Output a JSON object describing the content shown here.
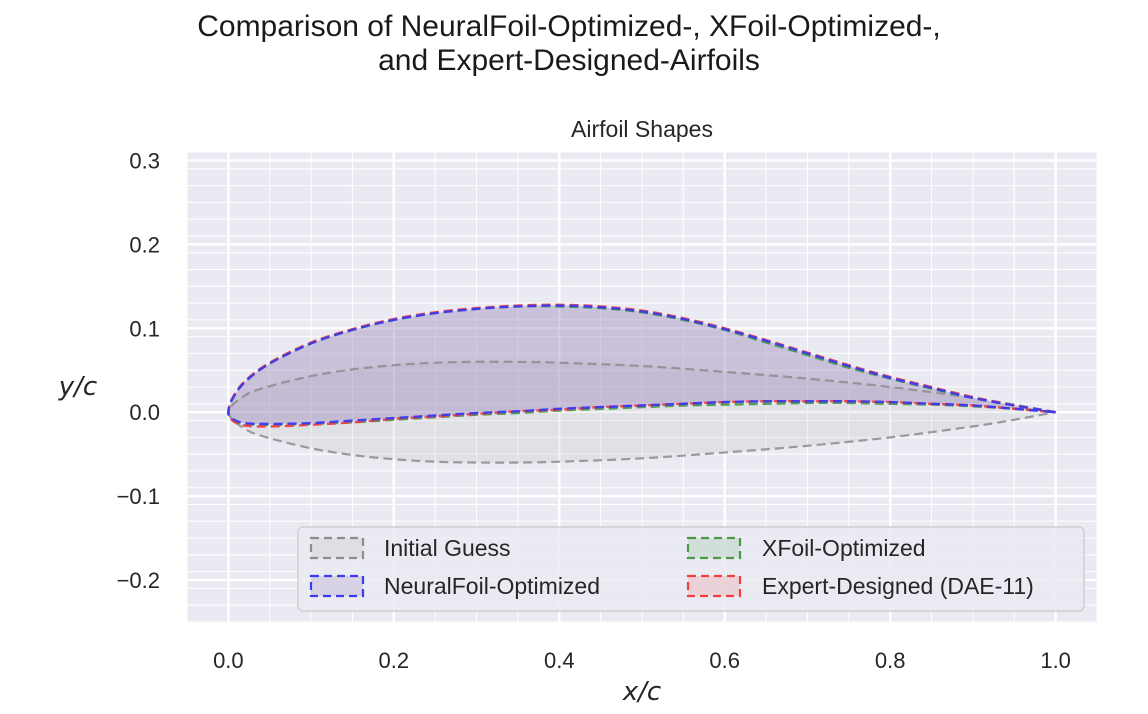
{
  "figure": {
    "suptitle_line1": "Comparison of NeuralFoil-Optimized-, XFoil-Optimized-,",
    "suptitle_line2": "and Expert-Designed-Airfoils"
  },
  "chart_data": {
    "type": "line",
    "title": "Airfoil Shapes",
    "xlabel": "x/c",
    "ylabel": "y/c",
    "xlim": [
      -0.05,
      1.05
    ],
    "ylim": [
      -0.25,
      0.31
    ],
    "xticks": [
      0.0,
      0.2,
      0.4,
      0.6,
      0.8,
      1.0
    ],
    "xtick_labels": [
      "0.0",
      "0.2",
      "0.4",
      "0.6",
      "0.8",
      "1.0"
    ],
    "yticks": [
      -0.2,
      -0.1,
      0.0,
      0.1,
      0.2,
      0.3
    ],
    "ytick_labels": [
      "−0.2",
      "−0.1",
      "0.0",
      "0.1",
      "0.2",
      "0.3"
    ],
    "grid": true,
    "legend_position": "lower-right",
    "series": [
      {
        "name": "Initial Guess",
        "color": "#8c8c8c",
        "fill_color": "#bdbdbd",
        "linestyle": "dashed",
        "x": [
          0.0,
          0.02,
          0.05,
          0.1,
          0.15,
          0.2,
          0.25,
          0.3,
          0.35,
          0.4,
          0.5,
          0.6,
          0.7,
          0.8,
          0.9,
          0.95,
          1.0
        ],
        "upper": [
          0.0,
          0.02,
          0.031,
          0.043,
          0.051,
          0.056,
          0.059,
          0.06,
          0.06,
          0.059,
          0.055,
          0.048,
          0.04,
          0.03,
          0.017,
          0.009,
          0.0
        ],
        "lower": [
          0.0,
          -0.02,
          -0.031,
          -0.043,
          -0.051,
          -0.056,
          -0.059,
          -0.06,
          -0.06,
          -0.059,
          -0.055,
          -0.048,
          -0.04,
          -0.03,
          -0.017,
          -0.009,
          0.0
        ]
      },
      {
        "name": "NeuralFoil-Optimized",
        "color": "#3b3bf0",
        "fill_color": "#9a86b8",
        "linestyle": "dashed",
        "x": [
          0.0,
          0.005,
          0.02,
          0.05,
          0.1,
          0.15,
          0.2,
          0.25,
          0.3,
          0.35,
          0.4,
          0.45,
          0.5,
          0.55,
          0.6,
          0.65,
          0.7,
          0.75,
          0.8,
          0.85,
          0.9,
          0.95,
          1.0
        ],
        "upper": [
          0.0,
          0.016,
          0.036,
          0.058,
          0.082,
          0.098,
          0.11,
          0.118,
          0.123,
          0.126,
          0.127,
          0.125,
          0.12,
          0.111,
          0.099,
          0.085,
          0.07,
          0.055,
          0.041,
          0.029,
          0.017,
          0.008,
          0.0
        ],
        "lower": [
          0.0,
          -0.008,
          -0.013,
          -0.014,
          -0.013,
          -0.01,
          -0.007,
          -0.004,
          -0.001,
          0.001,
          0.004,
          0.006,
          0.008,
          0.01,
          0.012,
          0.013,
          0.013,
          0.013,
          0.012,
          0.01,
          0.008,
          0.004,
          0.0
        ]
      },
      {
        "name": "XFoil-Optimized",
        "color": "#4a9a4a",
        "linestyle": "dashed",
        "x": [
          0.0,
          0.005,
          0.02,
          0.05,
          0.1,
          0.15,
          0.2,
          0.25,
          0.3,
          0.35,
          0.4,
          0.45,
          0.5,
          0.55,
          0.6,
          0.65,
          0.7,
          0.75,
          0.8,
          0.85,
          0.9,
          0.95,
          1.0
        ],
        "upper": [
          0.0,
          0.016,
          0.036,
          0.058,
          0.082,
          0.098,
          0.11,
          0.118,
          0.123,
          0.126,
          0.126,
          0.124,
          0.119,
          0.11,
          0.098,
          0.083,
          0.068,
          0.053,
          0.04,
          0.028,
          0.017,
          0.008,
          0.0
        ],
        "lower": [
          0.0,
          -0.009,
          -0.014,
          -0.015,
          -0.014,
          -0.012,
          -0.009,
          -0.006,
          -0.003,
          -0.001,
          0.002,
          0.004,
          0.006,
          0.008,
          0.009,
          0.01,
          0.011,
          0.011,
          0.01,
          0.009,
          0.007,
          0.004,
          0.0
        ]
      },
      {
        "name": "Expert-Designed (DAE-11)",
        "color": "#f04040",
        "linestyle": "dashed",
        "x": [
          0.0,
          0.005,
          0.02,
          0.05,
          0.1,
          0.15,
          0.2,
          0.25,
          0.3,
          0.35,
          0.4,
          0.45,
          0.5,
          0.55,
          0.6,
          0.65,
          0.7,
          0.75,
          0.8,
          0.85,
          0.9,
          0.95,
          1.0
        ],
        "upper": [
          0.0,
          0.017,
          0.037,
          0.059,
          0.083,
          0.099,
          0.111,
          0.119,
          0.124,
          0.127,
          0.128,
          0.126,
          0.121,
          0.112,
          0.1,
          0.086,
          0.071,
          0.056,
          0.042,
          0.03,
          0.018,
          0.008,
          0.0
        ],
        "lower": [
          0.0,
          -0.01,
          -0.016,
          -0.017,
          -0.015,
          -0.012,
          -0.008,
          -0.005,
          -0.002,
          0.001,
          0.003,
          0.006,
          0.008,
          0.01,
          0.012,
          0.013,
          0.013,
          0.013,
          0.012,
          0.01,
          0.008,
          0.004,
          0.0
        ]
      }
    ]
  }
}
